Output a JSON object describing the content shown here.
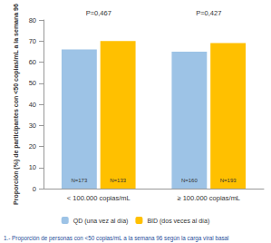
{
  "chart_data": {
    "type": "bar",
    "y_label": "Proporción (%) de participantes con <50 copias/mL a la semana 96",
    "caption": "1.- Proporción de personas con <50 copias/mL a la semana 96 según la carga viral basal",
    "categories": [
      "< 100.000 copias/mL",
      "≥ 100.000 copias/mL"
    ],
    "annotations": [
      "P=0,467",
      "P=0,427"
    ],
    "series": [
      {
        "name": "QD (una vez al día)",
        "color": "#9dc3e6",
        "values": [
          66,
          65
        ],
        "n_labels": [
          "N=173",
          "N=160"
        ]
      },
      {
        "name": "BID (dos veces al día)",
        "color": "#ffc000",
        "values": [
          70,
          69
        ],
        "n_labels": [
          "N=133",
          "N=193"
        ]
      }
    ],
    "ylim": [
      0,
      80
    ],
    "yticks": [
      0,
      10,
      20,
      30,
      40,
      50,
      60,
      70,
      80
    ],
    "grid": false,
    "legend": "bottom",
    "data_labels": false
  }
}
